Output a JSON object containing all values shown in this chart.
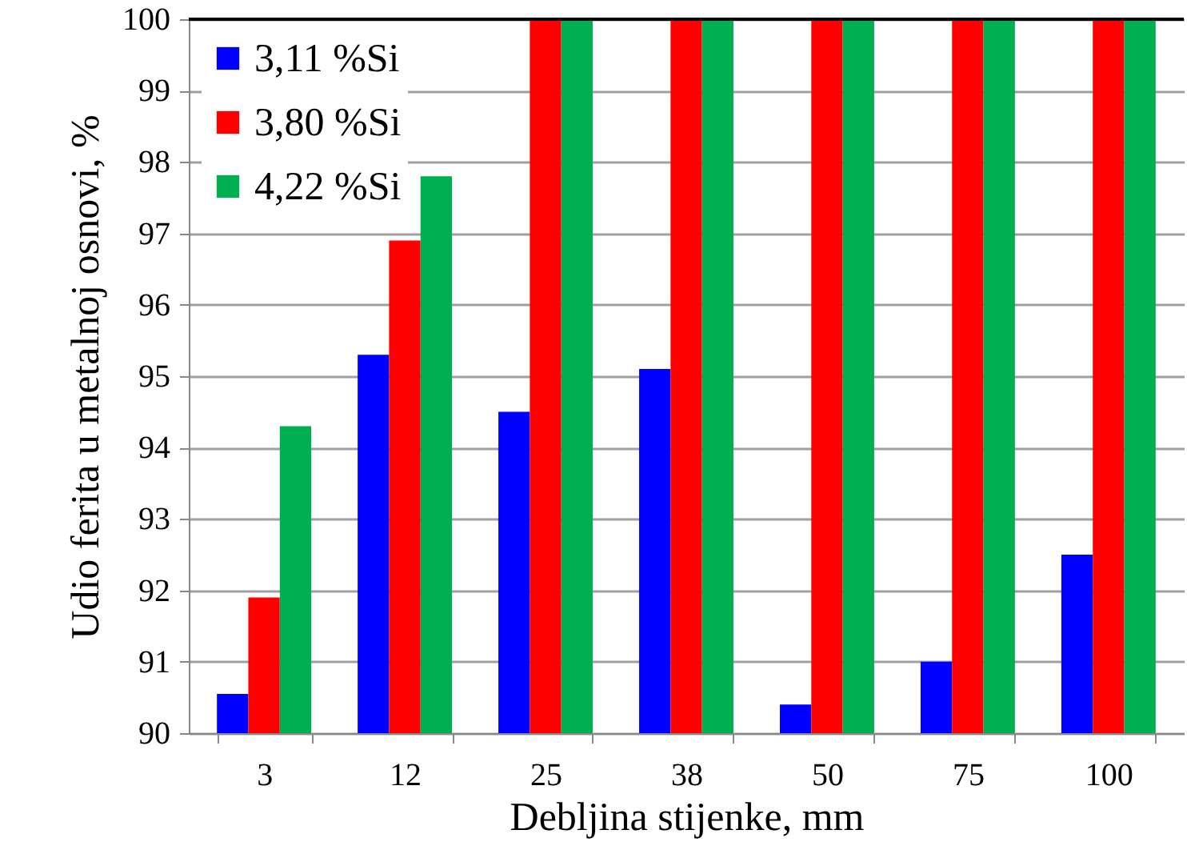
{
  "chart_data": {
    "type": "bar",
    "xlabel": "Debljina stijenke, mm",
    "ylabel": "Udio ferita u metalnoj osnovi, %",
    "categories": [
      "3",
      "12",
      "25",
      "38",
      "50",
      "75",
      "100"
    ],
    "series": [
      {
        "name": "3,11 %Si",
        "color": "#0000ff",
        "values": [
          90.55,
          95.3,
          94.5,
          95.1,
          90.4,
          91.0,
          92.5
        ]
      },
      {
        "name": "3,80 %Si",
        "color": "#ff0000",
        "values": [
          91.9,
          96.9,
          100,
          100,
          100,
          100,
          100
        ]
      },
      {
        "name": "4,22 %Si",
        "color": "#00b050",
        "values": [
          94.3,
          97.8,
          100,
          100,
          100,
          100,
          100
        ]
      }
    ],
    "ylim": [
      90,
      100
    ],
    "yticks": [
      90,
      91,
      92,
      93,
      94,
      95,
      96,
      97,
      98,
      99,
      100
    ],
    "grid": "y",
    "legend": "top left"
  }
}
